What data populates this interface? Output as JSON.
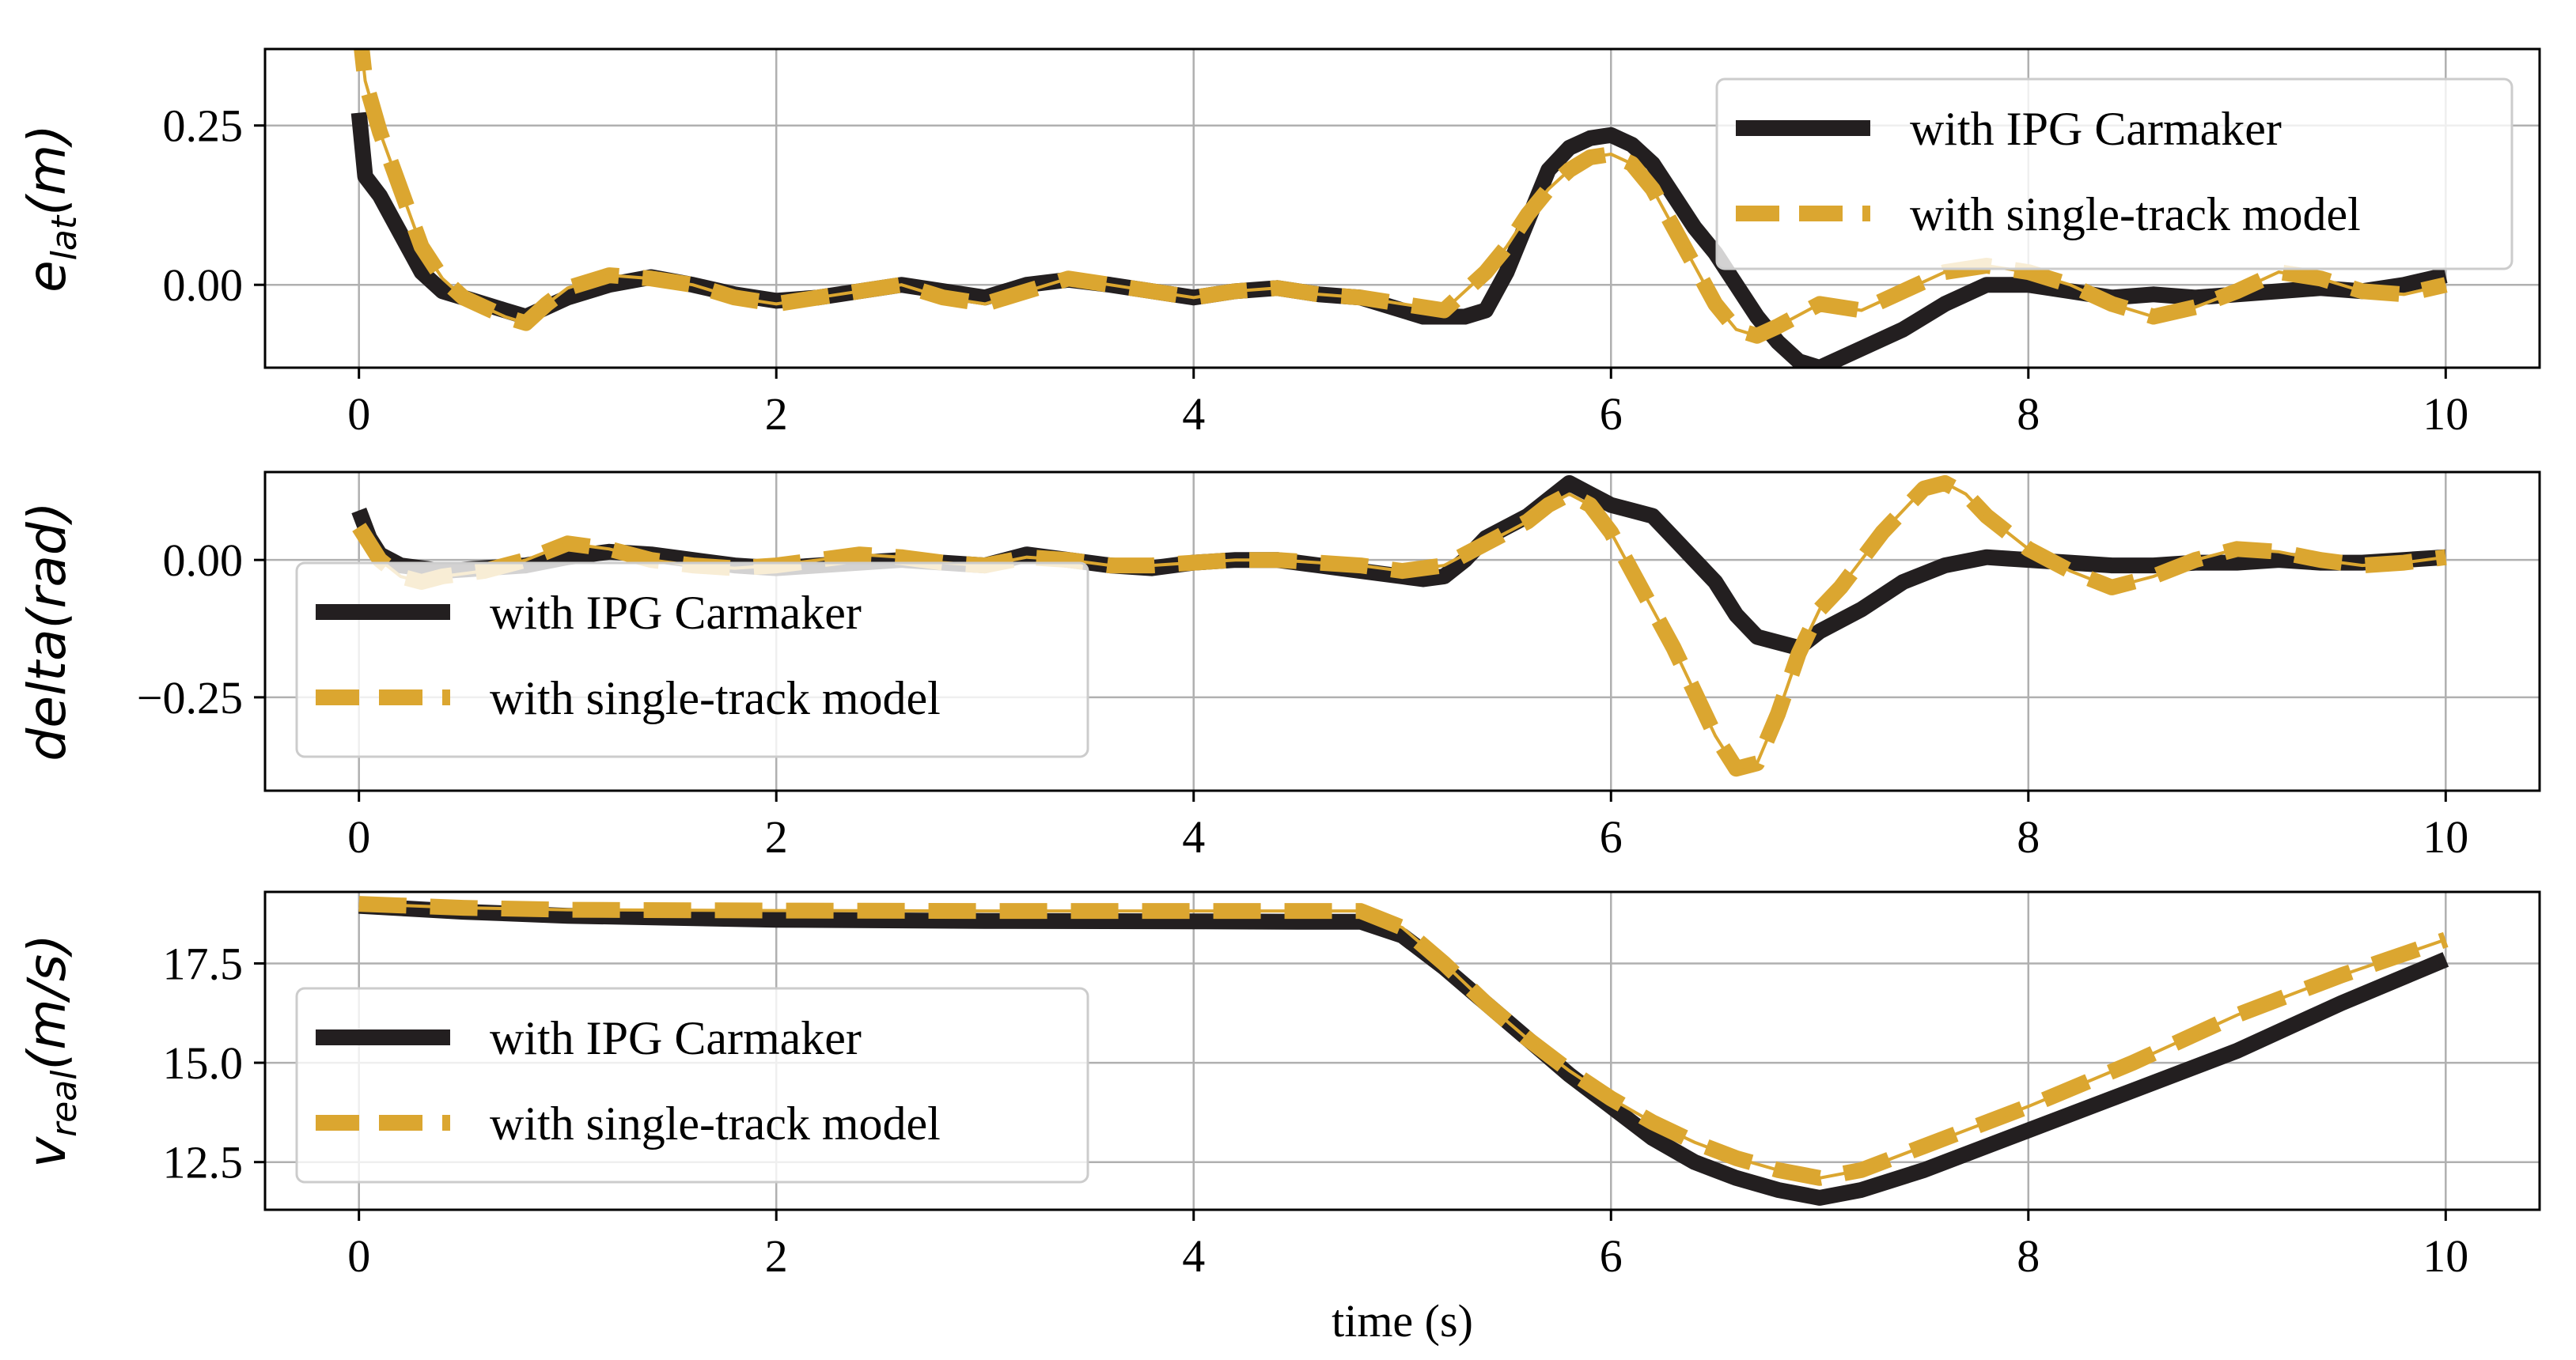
{
  "colors": {
    "carmaker": "#231f20",
    "single_track": "#dba630"
  },
  "chart_data": [
    {
      "type": "line",
      "ylabel_base": "e",
      "ylabel_sub": "lat",
      "ylabel_unit": "(m)",
      "xlim": [
        -0.45,
        10.45
      ],
      "ylim": [
        -0.13,
        0.37
      ],
      "xticks": [
        0,
        2,
        4,
        6,
        8,
        10
      ],
      "yticks": [
        0.0,
        0.25
      ],
      "ytick_labels": [
        "0.00",
        "0.25"
      ],
      "legend": "upper right",
      "grid": true,
      "series": [
        {
          "name": "with IPG Carmaker",
          "style": "solid",
          "color": "#231f20",
          "x": [
            0,
            0.03,
            0.1,
            0.2,
            0.3,
            0.4,
            0.5,
            0.6,
            0.7,
            0.8,
            0.9,
            1.0,
            1.2,
            1.4,
            1.6,
            1.8,
            2.0,
            2.2,
            2.4,
            2.6,
            2.8,
            3.0,
            3.2,
            3.4,
            3.6,
            3.8,
            4.0,
            4.2,
            4.4,
            4.6,
            4.8,
            5.0,
            5.1,
            5.2,
            5.3,
            5.4,
            5.5,
            5.6,
            5.7,
            5.8,
            5.9,
            6.0,
            6.1,
            6.2,
            6.3,
            6.4,
            6.5,
            6.6,
            6.7,
            6.8,
            6.9,
            7.0,
            7.2,
            7.4,
            7.6,
            7.8,
            8.0,
            8.2,
            8.4,
            8.6,
            8.8,
            9.0,
            9.2,
            9.4,
            9.6,
            9.8,
            10.0
          ],
          "y": [
            0.27,
            0.17,
            0.14,
            0.08,
            0.02,
            -0.01,
            -0.02,
            -0.03,
            -0.04,
            -0.05,
            -0.035,
            -0.02,
            0.0,
            0.012,
            0.0,
            -0.015,
            -0.025,
            -0.02,
            -0.01,
            0.0,
            -0.01,
            -0.02,
            0.0,
            0.008,
            0.0,
            -0.01,
            -0.02,
            -0.01,
            -0.005,
            -0.015,
            -0.02,
            -0.04,
            -0.05,
            -0.05,
            -0.05,
            -0.04,
            0.02,
            0.1,
            0.18,
            0.215,
            0.23,
            0.235,
            0.22,
            0.19,
            0.14,
            0.09,
            0.05,
            0.0,
            -0.05,
            -0.09,
            -0.12,
            -0.13,
            -0.1,
            -0.07,
            -0.03,
            0.0,
            0.0,
            -0.01,
            -0.02,
            -0.015,
            -0.02,
            -0.015,
            -0.01,
            -0.005,
            -0.01,
            0.0,
            0.015
          ]
        },
        {
          "name": "with single-track model",
          "style": "dashed",
          "color": "#dba630",
          "x": [
            0,
            0.03,
            0.1,
            0.2,
            0.3,
            0.4,
            0.5,
            0.6,
            0.7,
            0.8,
            0.9,
            1.0,
            1.2,
            1.4,
            1.6,
            1.8,
            2.0,
            2.2,
            2.4,
            2.6,
            2.8,
            3.0,
            3.2,
            3.4,
            3.6,
            3.8,
            4.0,
            4.2,
            4.4,
            4.6,
            4.8,
            5.0,
            5.2,
            5.4,
            5.5,
            5.6,
            5.7,
            5.8,
            5.9,
            6.0,
            6.1,
            6.2,
            6.3,
            6.4,
            6.5,
            6.6,
            6.7,
            6.8,
            7.0,
            7.2,
            7.4,
            7.6,
            7.8,
            8.0,
            8.2,
            8.4,
            8.6,
            8.8,
            9.0,
            9.2,
            9.4,
            9.6,
            9.8,
            10.0
          ],
          "y": [
            0.41,
            0.32,
            0.24,
            0.15,
            0.06,
            0.01,
            -0.02,
            -0.035,
            -0.05,
            -0.06,
            -0.03,
            -0.005,
            0.015,
            0.01,
            0.0,
            -0.02,
            -0.03,
            -0.02,
            -0.01,
            0.0,
            -0.02,
            -0.03,
            -0.01,
            0.01,
            0.0,
            -0.01,
            -0.02,
            -0.01,
            -0.005,
            -0.015,
            -0.02,
            -0.03,
            -0.04,
            0.02,
            0.06,
            0.11,
            0.15,
            0.18,
            0.2,
            0.205,
            0.19,
            0.15,
            0.09,
            0.03,
            -0.03,
            -0.07,
            -0.08,
            -0.065,
            -0.03,
            -0.04,
            -0.01,
            0.02,
            0.03,
            0.02,
            0.0,
            -0.03,
            -0.05,
            -0.035,
            -0.01,
            0.02,
            0.01,
            -0.01,
            -0.015,
            0.0
          ]
        }
      ]
    },
    {
      "type": "line",
      "ylabel_base": "delta(rad)",
      "ylabel_sub": "",
      "ylabel_unit": "",
      "xlim": [
        -0.45,
        10.45
      ],
      "ylim": [
        -0.42,
        0.16
      ],
      "xticks": [
        0,
        2,
        4,
        6,
        8,
        10
      ],
      "yticks": [
        -0.25,
        0.0
      ],
      "ytick_labels": [
        "−0.25",
        "0.00"
      ],
      "legend": "lower left",
      "grid": true,
      "series": [
        {
          "name": "with IPG Carmaker",
          "style": "solid",
          "color": "#231f20",
          "x": [
            0,
            0.05,
            0.1,
            0.2,
            0.3,
            0.4,
            0.6,
            0.8,
            1.0,
            1.2,
            1.4,
            1.6,
            1.8,
            2.0,
            2.2,
            2.4,
            2.6,
            2.8,
            3.0,
            3.2,
            3.4,
            3.6,
            3.8,
            4.0,
            4.2,
            4.4,
            4.6,
            4.8,
            5.0,
            5.1,
            5.2,
            5.3,
            5.4,
            5.5,
            5.6,
            5.7,
            5.8,
            5.9,
            6.0,
            6.1,
            6.2,
            6.3,
            6.4,
            6.5,
            6.6,
            6.7,
            6.8,
            6.9,
            7.0,
            7.2,
            7.4,
            7.6,
            7.8,
            8.0,
            8.2,
            8.4,
            8.6,
            8.8,
            9.0,
            9.2,
            9.4,
            9.6,
            9.8,
            10.0
          ],
          "y": [
            0.09,
            0.04,
            0.01,
            -0.01,
            -0.015,
            -0.02,
            -0.015,
            -0.01,
            0.005,
            0.015,
            0.01,
            0.0,
            -0.01,
            -0.015,
            -0.01,
            -0.005,
            0.0,
            -0.005,
            -0.01,
            0.01,
            0.0,
            -0.01,
            -0.015,
            -0.005,
            0.0,
            0.0,
            -0.01,
            -0.02,
            -0.03,
            -0.035,
            -0.03,
            0.0,
            0.04,
            0.06,
            0.08,
            0.11,
            0.14,
            0.12,
            0.1,
            0.09,
            0.08,
            0.04,
            0.0,
            -0.04,
            -0.1,
            -0.14,
            -0.15,
            -0.16,
            -0.13,
            -0.09,
            -0.04,
            -0.01,
            0.005,
            0.0,
            -0.005,
            -0.01,
            -0.01,
            -0.005,
            -0.005,
            0.0,
            -0.005,
            -0.005,
            0.0,
            0.005
          ]
        },
        {
          "name": "with single-track model",
          "style": "dashed",
          "color": "#dba630",
          "x": [
            0,
            0.05,
            0.1,
            0.2,
            0.3,
            0.4,
            0.6,
            0.8,
            1.0,
            1.2,
            1.4,
            1.6,
            1.8,
            2.0,
            2.2,
            2.4,
            2.6,
            2.8,
            3.0,
            3.2,
            3.4,
            3.6,
            3.8,
            4.0,
            4.2,
            4.4,
            4.6,
            4.8,
            5.0,
            5.2,
            5.4,
            5.6,
            5.7,
            5.8,
            5.9,
            6.0,
            6.1,
            6.2,
            6.3,
            6.4,
            6.5,
            6.6,
            6.7,
            6.8,
            6.9,
            7.0,
            7.1,
            7.2,
            7.3,
            7.4,
            7.5,
            7.6,
            7.7,
            7.8,
            8.0,
            8.2,
            8.4,
            8.6,
            8.8,
            9.0,
            9.2,
            9.4,
            9.6,
            9.8,
            10.0
          ],
          "y": [
            0.06,
            0.03,
            0.0,
            -0.03,
            -0.04,
            -0.03,
            -0.02,
            0.0,
            0.03,
            0.02,
            0.0,
            -0.01,
            -0.015,
            -0.01,
            0.0,
            0.01,
            0.005,
            -0.005,
            -0.01,
            0.005,
            0.0,
            -0.01,
            -0.01,
            -0.005,
            0.0,
            0.0,
            -0.005,
            -0.01,
            -0.02,
            -0.01,
            0.03,
            0.07,
            0.1,
            0.12,
            0.1,
            0.05,
            -0.02,
            -0.09,
            -0.16,
            -0.24,
            -0.32,
            -0.38,
            -0.37,
            -0.28,
            -0.17,
            -0.09,
            -0.05,
            0.0,
            0.05,
            0.09,
            0.13,
            0.14,
            0.12,
            0.08,
            0.02,
            -0.02,
            -0.05,
            -0.03,
            0.0,
            0.02,
            0.015,
            0.0,
            -0.01,
            -0.005,
            0.005
          ]
        }
      ]
    },
    {
      "type": "line",
      "ylabel_base": "v",
      "ylabel_sub": "real",
      "ylabel_unit": "(m/s)",
      "xlabel": "time (s)",
      "xlim": [
        -0.45,
        10.45
      ],
      "ylim": [
        11.3,
        19.3
      ],
      "xticks": [
        0,
        2,
        4,
        6,
        8,
        10
      ],
      "yticks": [
        12.5,
        15.0,
        17.5
      ],
      "ytick_labels": [
        "12.5",
        "15.0",
        "17.5"
      ],
      "legend": "center left",
      "grid": true,
      "series": [
        {
          "name": "with IPG Carmaker",
          "style": "solid",
          "color": "#231f20",
          "x": [
            0,
            0.5,
            1.0,
            2.0,
            3.0,
            4.0,
            4.5,
            4.8,
            5.0,
            5.2,
            5.4,
            5.6,
            5.8,
            6.0,
            6.2,
            6.4,
            6.6,
            6.8,
            7.0,
            7.2,
            7.5,
            8.0,
            8.5,
            9.0,
            9.5,
            10.0
          ],
          "y": [
            18.95,
            18.8,
            18.7,
            18.6,
            18.57,
            18.56,
            18.55,
            18.55,
            18.2,
            17.4,
            16.5,
            15.6,
            14.7,
            13.9,
            13.1,
            12.5,
            12.1,
            11.8,
            11.6,
            11.8,
            12.3,
            13.3,
            14.3,
            15.3,
            16.5,
            17.6
          ]
        },
        {
          "name": "with single-track model",
          "style": "dashed",
          "color": "#dba630",
          "x": [
            0,
            0.5,
            1.0,
            2.0,
            3.0,
            4.0,
            4.5,
            4.8,
            5.0,
            5.2,
            5.4,
            5.6,
            5.8,
            6.0,
            6.2,
            6.4,
            6.6,
            6.8,
            7.0,
            7.2,
            7.5,
            8.0,
            8.5,
            9.0,
            9.5,
            10.0
          ],
          "y": [
            19.0,
            18.9,
            18.85,
            18.83,
            18.82,
            18.82,
            18.82,
            18.82,
            18.4,
            17.5,
            16.5,
            15.6,
            14.8,
            14.1,
            13.5,
            13.0,
            12.6,
            12.3,
            12.1,
            12.3,
            12.9,
            13.9,
            15.0,
            16.2,
            17.2,
            18.1
          ]
        }
      ]
    }
  ]
}
